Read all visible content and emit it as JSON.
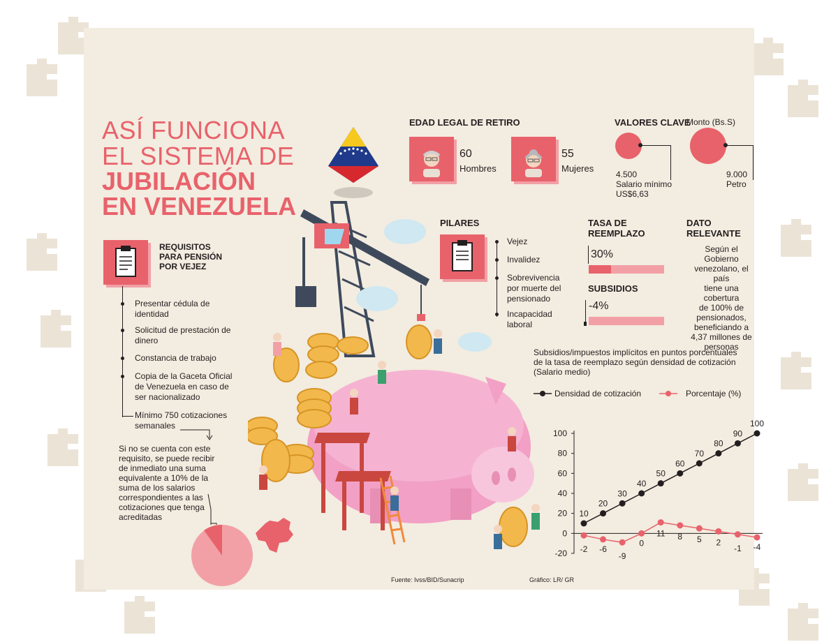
{
  "title": {
    "line1": "ASÍ FUNCIONA",
    "line2": "EL SISTEMA DE",
    "line3": "JUBILACIÓN",
    "line4": "EN VENEZUELA"
  },
  "edad": {
    "header": "EDAD LEGAL DE RETIRO",
    "men": {
      "value": "60",
      "label": "Hombres"
    },
    "women": {
      "value": "55",
      "label": "Mujeres"
    }
  },
  "valores": {
    "header": "VALORES CLAVE",
    "monto_label": "Monto (Bs.S)",
    "salario": {
      "value": "4.500",
      "label": "Salario mínimo",
      "usd": "US$6,63"
    },
    "petro": {
      "value": "9.000",
      "label": "Petro"
    }
  },
  "requisitos": {
    "header": [
      "REQUISITOS",
      "PARA PENSIÓN",
      "POR VEJEZ"
    ],
    "items": [
      [
        "Presentar cédula de",
        "identidad"
      ],
      [
        "Solicitud de prestación de",
        "dinero"
      ],
      [
        "Constancia de trabajo"
      ],
      [
        "Copia de la Gaceta Oficial",
        "de Venezuela en caso de",
        "ser nacionalizado"
      ],
      [
        "Mínimo 750 cotizaciones",
        "semanales"
      ]
    ],
    "note": [
      "Si no se cuenta con este",
      "requisito, se puede recibir",
      "de inmediato una suma",
      "equivalente a 10% de la",
      "suma de los salarios",
      "correspondientes a las",
      "cotizaciones que tenga",
      "acreditadas"
    ]
  },
  "pilares": {
    "header": "PILARES",
    "items": [
      [
        "Vejez"
      ],
      [
        "Invalidez"
      ],
      [
        "Sobrevivencia",
        "por muerte del",
        "pensionado"
      ],
      [
        "Incapacidad",
        "laboral"
      ]
    ]
  },
  "tasa": {
    "header": [
      "TASA DE",
      "REEMPLAZO"
    ],
    "value": "30%",
    "fraction": 0.3
  },
  "subsidios": {
    "header": "SUBSIDIOS",
    "value": "-4%"
  },
  "dato": {
    "header": [
      "DATO",
      "RELEVANTE"
    ],
    "text": [
      "Según el Gobierno",
      "venezolano, el país",
      "tiene una cobertura",
      "de 100% de",
      "pensionados,",
      "beneficiando a",
      "4,37 millones de",
      "personas"
    ]
  },
  "chart_title": [
    "Subsidios/impuestos implícitos en puntos porcentuales",
    "de la tasa de reemplazo según densidad de cotización",
    "(Salario medio)"
  ],
  "legend": {
    "series1": "Densidad de cotización",
    "series2": "Porcentaje (%)"
  },
  "source": "Fuente: Ivss/BID/Sunacrip",
  "credit": "Gráfico: LR/ GR",
  "colors": {
    "accent": "#e8626b",
    "light": "#f2a0a6",
    "panel": "#f3ece0",
    "text": "#231f20"
  },
  "chart_data": {
    "type": "line",
    "x": [
      1,
      2,
      3,
      4,
      5,
      6,
      7,
      8,
      9,
      10
    ],
    "series": [
      {
        "name": "Densidad de cotización",
        "values": [
          10,
          20,
          30,
          40,
          50,
          60,
          70,
          80,
          90,
          100
        ],
        "color": "#231f20"
      },
      {
        "name": "Porcentaje (%)",
        "values": [
          -2,
          -6,
          -9,
          0,
          11,
          8,
          5,
          2,
          -1,
          -4
        ],
        "color": "#e8626b"
      }
    ],
    "yticks": [
      -20,
      0,
      20,
      40,
      60,
      80,
      100
    ],
    "ylim": [
      -20,
      100
    ]
  }
}
